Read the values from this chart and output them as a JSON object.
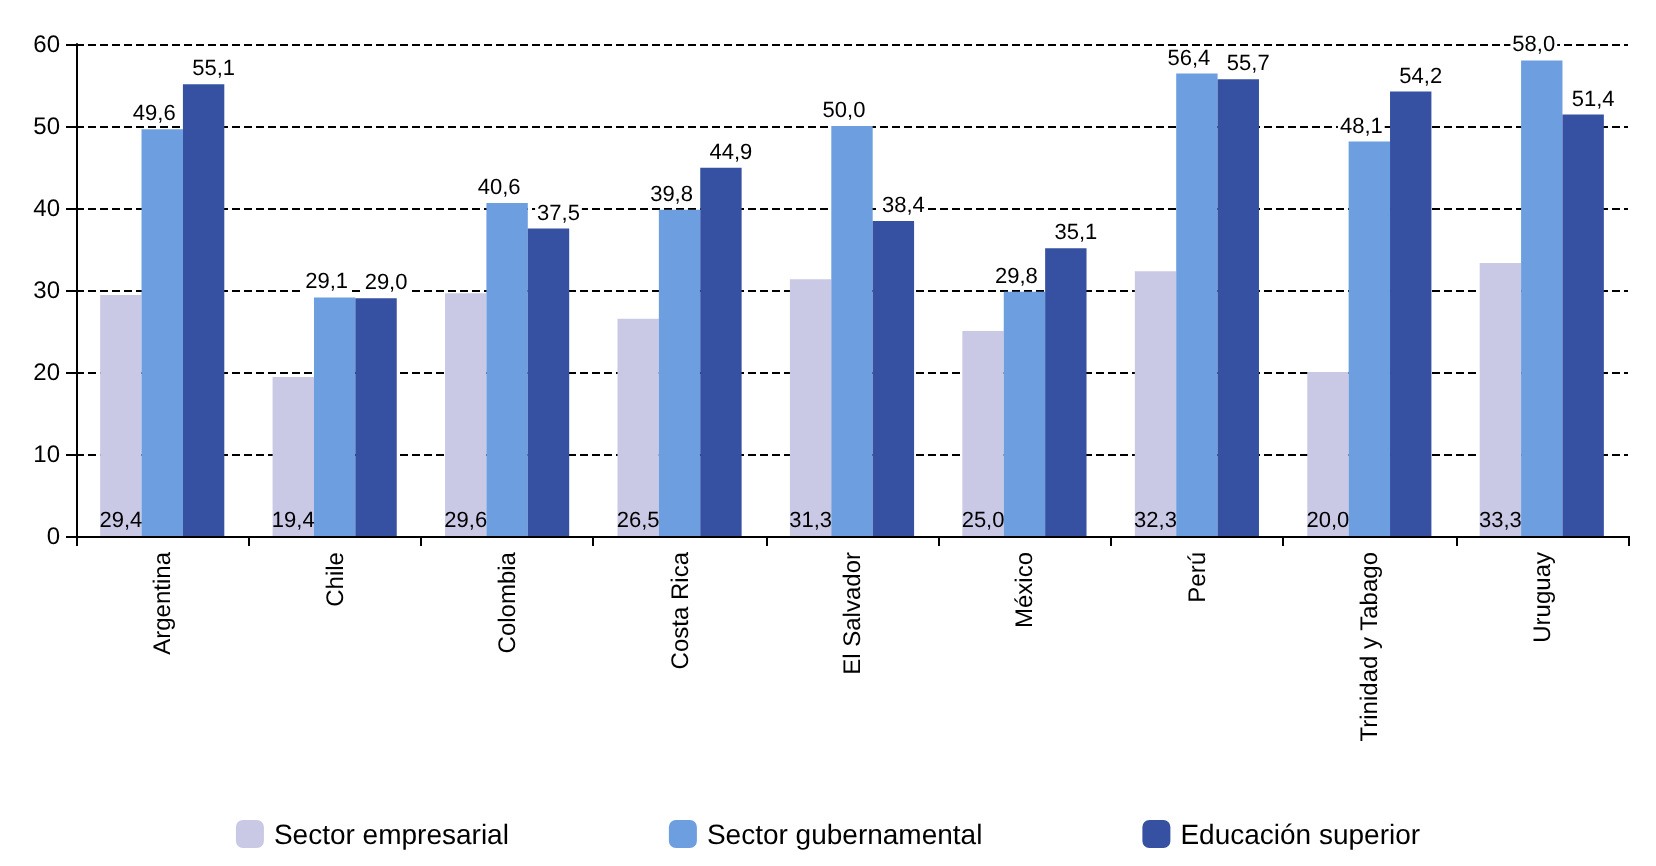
{
  "chart_data": {
    "type": "bar",
    "categories": [
      "Argentina",
      "Chile",
      "Colombia",
      "Costa Rica",
      "El Salvador",
      "México",
      "Perú",
      "Trinidad y Tabago",
      "Uruguay"
    ],
    "series": [
      {
        "name": "Sector empresarial",
        "color": "#c9c9e6",
        "values": [
          29.4,
          19.4,
          29.6,
          26.5,
          31.3,
          25.0,
          32.3,
          20.0,
          33.3
        ],
        "value_labels": [
          "29,4",
          "19,4",
          "29,6",
          "26,5",
          "31,3",
          "25,0",
          "32,3",
          "20,0",
          "33,3"
        ]
      },
      {
        "name": "Sector gubernamental",
        "color": "#6d9ee0",
        "values": [
          49.6,
          29.1,
          40.6,
          39.8,
          50.0,
          29.8,
          56.4,
          48.1,
          58.0
        ],
        "value_labels": [
          "49,6",
          "29,1",
          "40,6",
          "39,8",
          "50,0",
          "29,8",
          "56,4",
          "48,1",
          "58,0"
        ]
      },
      {
        "name": "Educación superior",
        "color": "#3650a2",
        "values": [
          55.1,
          29.0,
          37.5,
          44.9,
          38.4,
          35.1,
          55.7,
          54.2,
          51.4
        ],
        "value_labels": [
          "55,1",
          "29,0",
          "37,5",
          "44,9",
          "38,4",
          "35,1",
          "55,7",
          "54,2",
          "51,4"
        ]
      }
    ],
    "ylim": [
      0,
      60
    ],
    "yticks": [
      0,
      10,
      20,
      30,
      40,
      50,
      60
    ],
    "grid": "y",
    "legend": "bottom"
  }
}
